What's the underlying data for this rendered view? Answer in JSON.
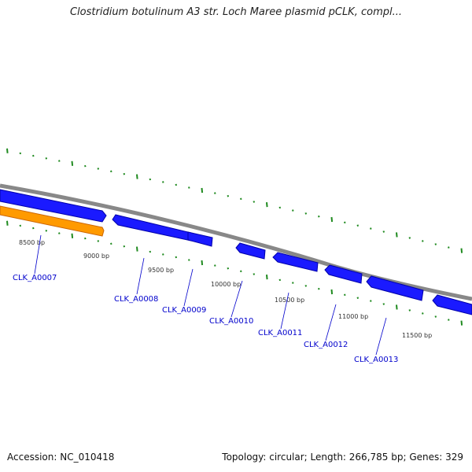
{
  "title": "Clostridium botulinum A3 str. Loch Maree plasmid pCLK, compl...",
  "footer": {
    "accession": "Accession: NC_010418",
    "summary": "Topology: circular; Length: 266,785 bp; Genes: 329"
  },
  "colors": {
    "backbone": "#888888",
    "gene_forward": "#1a1aff",
    "gene_forward_dark": "#0000aa",
    "gene_highlight": "#ff9900",
    "tick": "#1f8a1f",
    "label": "#0000cc"
  },
  "bp_ticks": [
    {
      "label": "8500 bp"
    },
    {
      "label": "9000 bp"
    },
    {
      "label": "9500 bp"
    },
    {
      "label": "10000 bp"
    },
    {
      "label": "10500 bp"
    },
    {
      "label": "11000 bp"
    },
    {
      "label": "11500 bp"
    }
  ],
  "genes": [
    {
      "label": "CLK_A0007"
    },
    {
      "label": "CLK_A0008"
    },
    {
      "label": "CLK_A0009"
    },
    {
      "label": "CLK_A0010"
    },
    {
      "label": "CLK_A0011"
    },
    {
      "label": "CLK_A0012"
    },
    {
      "label": "CLK_A0013"
    }
  ]
}
